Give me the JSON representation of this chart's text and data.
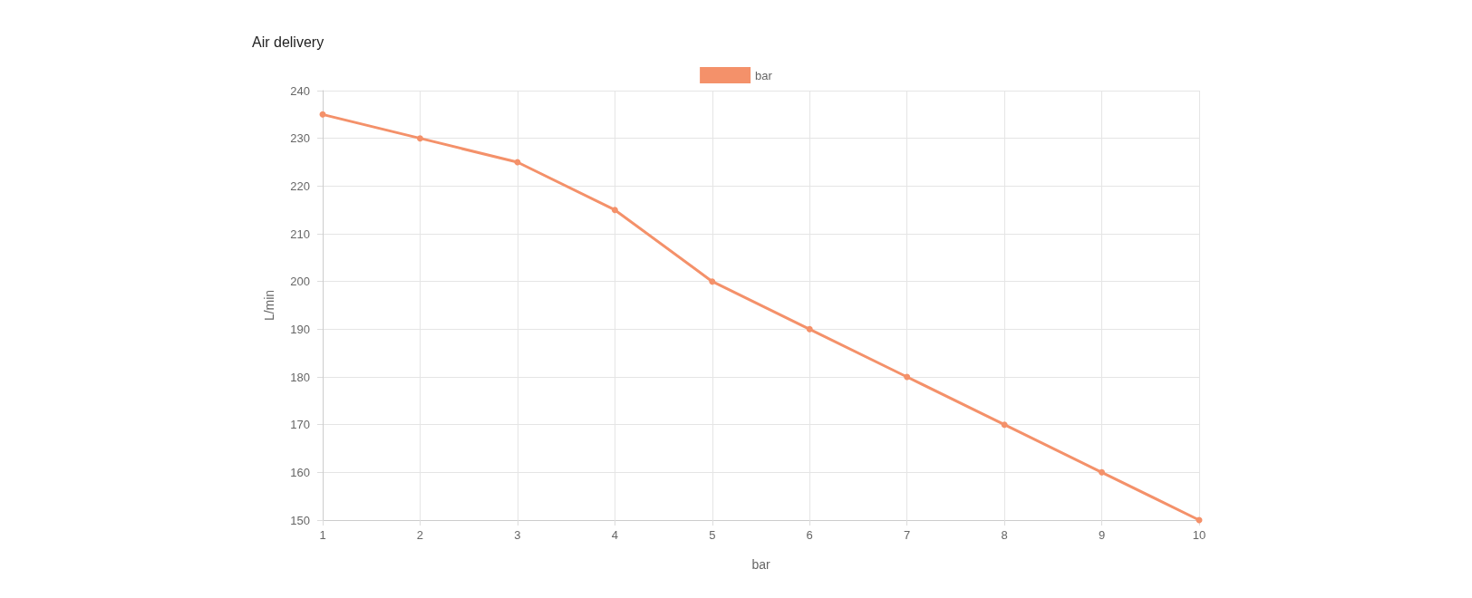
{
  "chart_data": {
    "type": "line",
    "title": "Air delivery",
    "xlabel": "bar",
    "ylabel": "L/min",
    "categories": [
      "1",
      "2",
      "3",
      "4",
      "5",
      "6",
      "7",
      "8",
      "9",
      "10"
    ],
    "series": [
      {
        "name": "bar",
        "color": "#f4916a",
        "values": [
          235,
          230,
          225,
          215,
          200,
          190,
          180,
          170,
          160,
          150
        ]
      }
    ],
    "ylim": [
      150,
      240
    ],
    "yticks": [
      150,
      160,
      170,
      180,
      190,
      200,
      210,
      220,
      230,
      240
    ],
    "grid": true,
    "legend": "top",
    "marker": "circle",
    "line_style": "solid"
  }
}
